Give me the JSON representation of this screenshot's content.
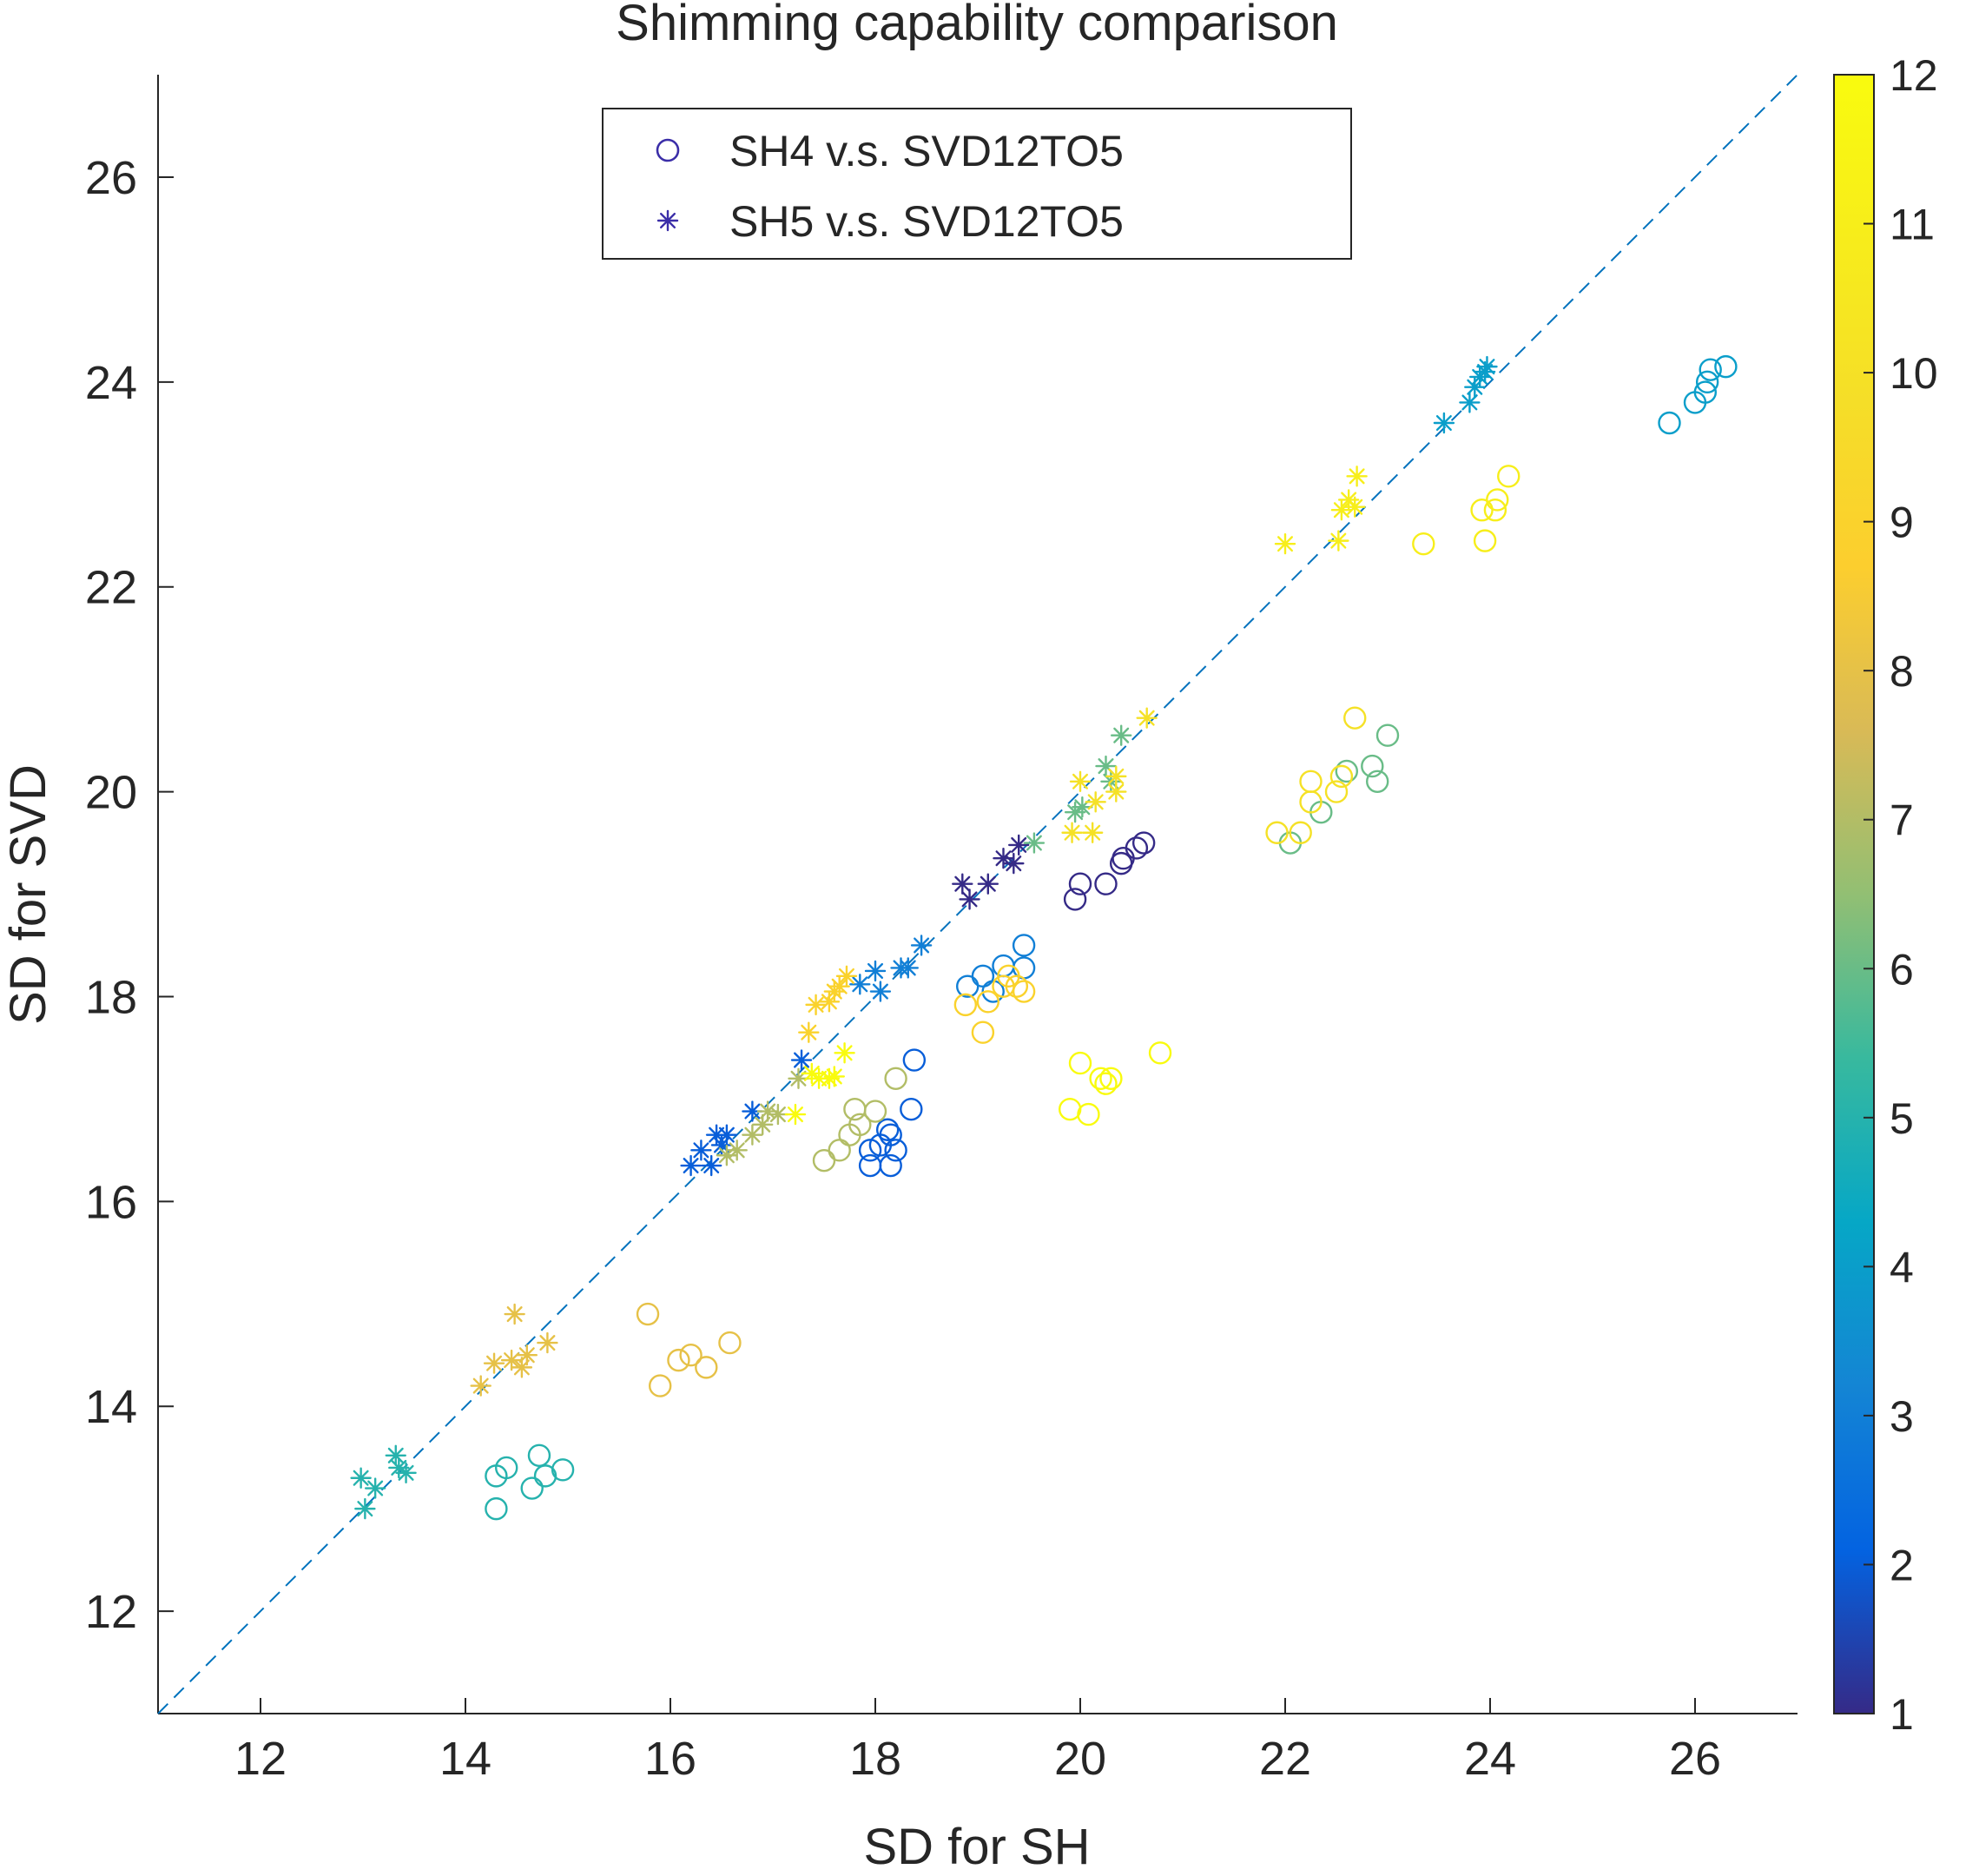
{
  "chart_data": {
    "type": "scatter",
    "title": "Shimming capability comparison",
    "xlabel": "SD for SH",
    "ylabel": "SD for SVD",
    "xlim": [
      11,
      27
    ],
    "ylim": [
      11,
      27
    ],
    "xticks": [
      12,
      14,
      16,
      18,
      20,
      22,
      24,
      26
    ],
    "yticks": [
      12,
      14,
      16,
      18,
      20,
      22,
      24,
      26
    ],
    "reference_line": {
      "style": "dashed",
      "from": [
        11,
        11
      ],
      "to": [
        27,
        27
      ]
    },
    "legend": {
      "position": "top-center",
      "entries": [
        {
          "label": "SH4 v.s. SVD12TO5",
          "marker": "circle"
        },
        {
          "label": "SH5 v.s. SVD12TO5",
          "marker": "asterisk"
        }
      ]
    },
    "colorbar": {
      "min": 1,
      "max": 12,
      "ticks": [
        1,
        2,
        3,
        4,
        5,
        6,
        7,
        8,
        9,
        10,
        11,
        12
      ],
      "colormap": "parula"
    },
    "series": [
      {
        "name": "SH4 v.s. SVD12TO5",
        "marker": "circle",
        "points": [
          {
            "x": 19.95,
            "y": 18.95,
            "c": 1
          },
          {
            "x": 20.0,
            "y": 19.1,
            "c": 1
          },
          {
            "x": 20.25,
            "y": 19.1,
            "c": 1
          },
          {
            "x": 20.4,
            "y": 19.3,
            "c": 1
          },
          {
            "x": 20.42,
            "y": 19.35,
            "c": 1
          },
          {
            "x": 20.55,
            "y": 19.45,
            "c": 1
          },
          {
            "x": 20.62,
            "y": 19.5,
            "c": 1
          },
          {
            "x": 17.95,
            "y": 16.35,
            "c": 2
          },
          {
            "x": 17.95,
            "y": 16.5,
            "c": 2
          },
          {
            "x": 18.05,
            "y": 16.55,
            "c": 2
          },
          {
            "x": 18.12,
            "y": 16.7,
            "c": 2
          },
          {
            "x": 18.15,
            "y": 16.65,
            "c": 2
          },
          {
            "x": 18.15,
            "y": 16.35,
            "c": 2
          },
          {
            "x": 18.2,
            "y": 16.5,
            "c": 2
          },
          {
            "x": 18.35,
            "y": 16.9,
            "c": 2
          },
          {
            "x": 18.38,
            "y": 17.38,
            "c": 2
          },
          {
            "x": 18.9,
            "y": 18.1,
            "c": 3
          },
          {
            "x": 19.05,
            "y": 18.2,
            "c": 3
          },
          {
            "x": 19.15,
            "y": 18.05,
            "c": 3
          },
          {
            "x": 19.25,
            "y": 18.3,
            "c": 3
          },
          {
            "x": 19.45,
            "y": 18.28,
            "c": 3
          },
          {
            "x": 19.45,
            "y": 18.5,
            "c": 3
          },
          {
            "x": 25.75,
            "y": 23.6,
            "c": 4
          },
          {
            "x": 26.0,
            "y": 23.8,
            "c": 4
          },
          {
            "x": 26.1,
            "y": 23.9,
            "c": 4
          },
          {
            "x": 26.12,
            "y": 24.0,
            "c": 4
          },
          {
            "x": 26.15,
            "y": 24.12,
            "c": 4
          },
          {
            "x": 26.3,
            "y": 24.15,
            "c": 4
          },
          {
            "x": 14.3,
            "y": 13.0,
            "c": 5
          },
          {
            "x": 14.3,
            "y": 13.32,
            "c": 5
          },
          {
            "x": 14.4,
            "y": 13.4,
            "c": 5
          },
          {
            "x": 14.65,
            "y": 13.2,
            "c": 5
          },
          {
            "x": 14.72,
            "y": 13.52,
            "c": 5
          },
          {
            "x": 14.78,
            "y": 13.32,
            "c": 5
          },
          {
            "x": 14.95,
            "y": 13.38,
            "c": 5
          },
          {
            "x": 22.05,
            "y": 19.5,
            "c": 6
          },
          {
            "x": 22.35,
            "y": 19.8,
            "c": 6
          },
          {
            "x": 22.6,
            "y": 20.2,
            "c": 6
          },
          {
            "x": 22.85,
            "y": 20.25,
            "c": 6
          },
          {
            "x": 22.9,
            "y": 20.1,
            "c": 6
          },
          {
            "x": 23.0,
            "y": 20.55,
            "c": 6
          },
          {
            "x": 17.5,
            "y": 16.4,
            "c": 7
          },
          {
            "x": 17.65,
            "y": 16.5,
            "c": 7
          },
          {
            "x": 17.75,
            "y": 16.65,
            "c": 7
          },
          {
            "x": 17.8,
            "y": 16.9,
            "c": 7
          },
          {
            "x": 17.85,
            "y": 16.75,
            "c": 7
          },
          {
            "x": 18.0,
            "y": 16.88,
            "c": 7
          },
          {
            "x": 18.2,
            "y": 17.2,
            "c": 7
          },
          {
            "x": 15.78,
            "y": 14.9,
            "c": 8
          },
          {
            "x": 15.9,
            "y": 14.2,
            "c": 8
          },
          {
            "x": 16.08,
            "y": 14.45,
            "c": 8
          },
          {
            "x": 16.2,
            "y": 14.5,
            "c": 8
          },
          {
            "x": 16.35,
            "y": 14.38,
            "c": 8
          },
          {
            "x": 16.58,
            "y": 14.62,
            "c": 8
          },
          {
            "x": 18.88,
            "y": 17.92,
            "c": 9
          },
          {
            "x": 19.05,
            "y": 17.65,
            "c": 9
          },
          {
            "x": 19.1,
            "y": 17.95,
            "c": 9
          },
          {
            "x": 19.25,
            "y": 18.1,
            "c": 9
          },
          {
            "x": 19.3,
            "y": 18.2,
            "c": 9
          },
          {
            "x": 19.38,
            "y": 18.1,
            "c": 9
          },
          {
            "x": 19.45,
            "y": 18.05,
            "c": 9
          },
          {
            "x": 21.92,
            "y": 19.6,
            "c": 10
          },
          {
            "x": 22.15,
            "y": 19.6,
            "c": 10
          },
          {
            "x": 22.25,
            "y": 19.9,
            "c": 10
          },
          {
            "x": 22.25,
            "y": 20.1,
            "c": 10
          },
          {
            "x": 22.5,
            "y": 20.0,
            "c": 10
          },
          {
            "x": 22.55,
            "y": 20.15,
            "c": 10
          },
          {
            "x": 22.68,
            "y": 20.72,
            "c": 10
          },
          {
            "x": 23.35,
            "y": 22.42,
            "c": 11
          },
          {
            "x": 23.95,
            "y": 22.45,
            "c": 11
          },
          {
            "x": 23.92,
            "y": 22.75,
            "c": 11
          },
          {
            "x": 24.05,
            "y": 22.75,
            "c": 11
          },
          {
            "x": 24.07,
            "y": 22.85,
            "c": 11
          },
          {
            "x": 24.18,
            "y": 23.08,
            "c": 11
          },
          {
            "x": 19.9,
            "y": 16.9,
            "c": 12
          },
          {
            "x": 20.0,
            "y": 17.35,
            "c": 12
          },
          {
            "x": 20.08,
            "y": 16.85,
            "c": 12
          },
          {
            "x": 20.2,
            "y": 17.2,
            "c": 12
          },
          {
            "x": 20.25,
            "y": 17.15,
            "c": 12
          },
          {
            "x": 20.3,
            "y": 17.2,
            "c": 12
          },
          {
            "x": 20.78,
            "y": 17.45,
            "c": 12
          }
        ]
      },
      {
        "name": "SH5 v.s. SVD12TO5",
        "marker": "asterisk",
        "points": [
          {
            "x": 18.85,
            "y": 19.1,
            "c": 1
          },
          {
            "x": 18.92,
            "y": 18.95,
            "c": 1
          },
          {
            "x": 19.1,
            "y": 19.1,
            "c": 1
          },
          {
            "x": 19.25,
            "y": 19.35,
            "c": 1
          },
          {
            "x": 19.35,
            "y": 19.3,
            "c": 1
          },
          {
            "x": 19.4,
            "y": 19.48,
            "c": 1
          },
          {
            "x": 16.2,
            "y": 16.35,
            "c": 2
          },
          {
            "x": 16.3,
            "y": 16.5,
            "c": 2
          },
          {
            "x": 16.4,
            "y": 16.35,
            "c": 2
          },
          {
            "x": 16.45,
            "y": 16.65,
            "c": 2
          },
          {
            "x": 16.5,
            "y": 16.55,
            "c": 2
          },
          {
            "x": 16.55,
            "y": 16.65,
            "c": 2
          },
          {
            "x": 16.8,
            "y": 16.88,
            "c": 2
          },
          {
            "x": 17.28,
            "y": 17.38,
            "c": 2
          },
          {
            "x": 17.85,
            "y": 18.12,
            "c": 3
          },
          {
            "x": 18.0,
            "y": 18.25,
            "c": 3
          },
          {
            "x": 18.05,
            "y": 18.05,
            "c": 3
          },
          {
            "x": 18.25,
            "y": 18.28,
            "c": 3
          },
          {
            "x": 18.32,
            "y": 18.28,
            "c": 3
          },
          {
            "x": 18.45,
            "y": 18.5,
            "c": 3
          },
          {
            "x": 23.55,
            "y": 23.6,
            "c": 4
          },
          {
            "x": 23.8,
            "y": 23.8,
            "c": 4
          },
          {
            "x": 23.85,
            "y": 23.95,
            "c": 4
          },
          {
            "x": 23.9,
            "y": 24.05,
            "c": 4
          },
          {
            "x": 23.95,
            "y": 24.1,
            "c": 4
          },
          {
            "x": 23.97,
            "y": 24.15,
            "c": 4
          },
          {
            "x": 12.98,
            "y": 13.3,
            "c": 5
          },
          {
            "x": 13.02,
            "y": 13.0,
            "c": 5
          },
          {
            "x": 13.12,
            "y": 13.2,
            "c": 5
          },
          {
            "x": 13.32,
            "y": 13.52,
            "c": 5
          },
          {
            "x": 13.35,
            "y": 13.4,
            "c": 5
          },
          {
            "x": 13.42,
            "y": 13.35,
            "c": 5
          },
          {
            "x": 19.95,
            "y": 19.8,
            "c": 6
          },
          {
            "x": 20.02,
            "y": 19.85,
            "c": 6
          },
          {
            "x": 20.25,
            "y": 20.25,
            "c": 6
          },
          {
            "x": 20.3,
            "y": 20.1,
            "c": 6
          },
          {
            "x": 20.4,
            "y": 20.55,
            "c": 6
          },
          {
            "x": 19.55,
            "y": 19.5,
            "c": 6
          },
          {
            "x": 16.55,
            "y": 16.45,
            "c": 7
          },
          {
            "x": 16.65,
            "y": 16.5,
            "c": 7
          },
          {
            "x": 16.8,
            "y": 16.65,
            "c": 7
          },
          {
            "x": 16.9,
            "y": 16.75,
            "c": 7
          },
          {
            "x": 16.95,
            "y": 16.88,
            "c": 7
          },
          {
            "x": 17.05,
            "y": 16.85,
            "c": 7
          },
          {
            "x": 17.25,
            "y": 17.2,
            "c": 7
          },
          {
            "x": 14.15,
            "y": 14.2,
            "c": 8
          },
          {
            "x": 14.28,
            "y": 14.42,
            "c": 8
          },
          {
            "x": 14.45,
            "y": 14.45,
            "c": 8
          },
          {
            "x": 14.48,
            "y": 14.9,
            "c": 8
          },
          {
            "x": 14.55,
            "y": 14.38,
            "c": 8
          },
          {
            "x": 14.6,
            "y": 14.5,
            "c": 8
          },
          {
            "x": 14.8,
            "y": 14.62,
            "c": 8
          },
          {
            "x": 17.35,
            "y": 17.65,
            "c": 9
          },
          {
            "x": 17.42,
            "y": 17.92,
            "c": 9
          },
          {
            "x": 17.55,
            "y": 17.95,
            "c": 9
          },
          {
            "x": 17.6,
            "y": 18.05,
            "c": 9
          },
          {
            "x": 17.65,
            "y": 18.1,
            "c": 9
          },
          {
            "x": 17.72,
            "y": 18.2,
            "c": 9
          },
          {
            "x": 19.92,
            "y": 19.6,
            "c": 10
          },
          {
            "x": 20.0,
            "y": 20.1,
            "c": 10
          },
          {
            "x": 20.12,
            "y": 19.6,
            "c": 10
          },
          {
            "x": 20.15,
            "y": 19.9,
            "c": 10
          },
          {
            "x": 20.35,
            "y": 20.0,
            "c": 10
          },
          {
            "x": 20.35,
            "y": 20.15,
            "c": 10
          },
          {
            "x": 20.65,
            "y": 20.72,
            "c": 10
          },
          {
            "x": 22.0,
            "y": 22.42,
            "c": 11
          },
          {
            "x": 22.52,
            "y": 22.45,
            "c": 11
          },
          {
            "x": 22.55,
            "y": 22.75,
            "c": 11
          },
          {
            "x": 22.62,
            "y": 22.85,
            "c": 11
          },
          {
            "x": 22.68,
            "y": 22.78,
            "c": 11
          },
          {
            "x": 22.7,
            "y": 23.08,
            "c": 11
          },
          {
            "x": 17.22,
            "y": 16.85,
            "c": 12
          },
          {
            "x": 17.38,
            "y": 17.25,
            "c": 12
          },
          {
            "x": 17.45,
            "y": 17.2,
            "c": 12
          },
          {
            "x": 17.55,
            "y": 17.2,
            "c": 12
          },
          {
            "x": 17.6,
            "y": 17.22,
            "c": 12
          },
          {
            "x": 17.7,
            "y": 17.45,
            "c": 12
          }
        ]
      }
    ]
  }
}
